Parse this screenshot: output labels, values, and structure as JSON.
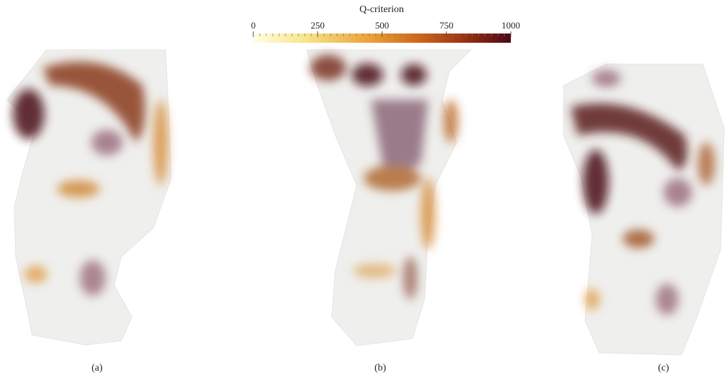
{
  "colorbar": {
    "title": "Q-criterion",
    "range": [
      0,
      1000
    ],
    "ticks": [
      0,
      250,
      500,
      750,
      1000
    ]
  },
  "panels": [
    {
      "label": "(a)"
    },
    {
      "label": "(b)"
    },
    {
      "label": "(c)"
    }
  ]
}
